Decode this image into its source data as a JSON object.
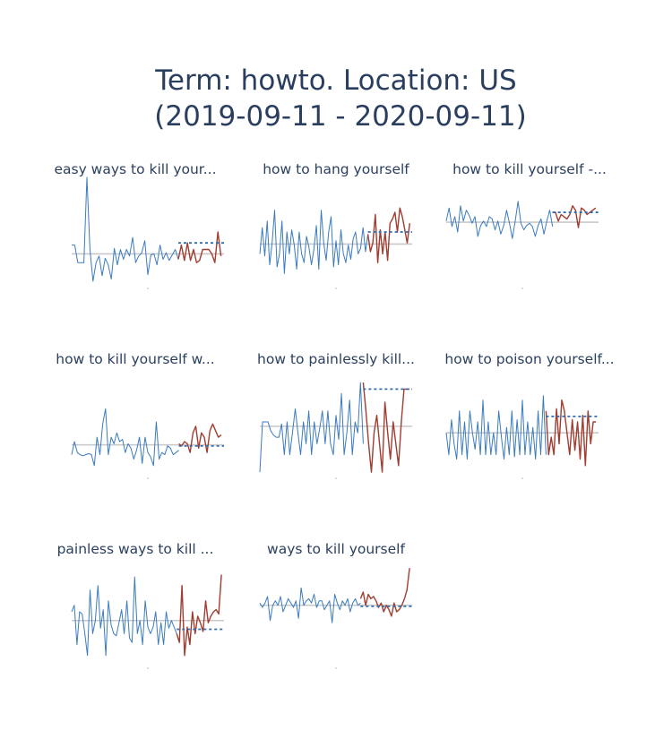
{
  "figure": {
    "title_line1": "Term: howto. Location: US",
    "title_line2": "(2019-09-11 - 2020-09-11)"
  },
  "colors": {
    "history_line": "#3b7bbf",
    "recent_line": "#a03d30",
    "baseline": "#c8c8c8",
    "projection_dotted": "#2e6eb5",
    "title_text": "#2a3f5f"
  },
  "chart_data": [
    {
      "type": "line",
      "title": "easy ways to kill your...",
      "history": [
        0.38,
        0.38,
        0.22,
        0.22,
        0.22,
        1.0,
        0.34,
        0.05,
        0.22,
        0.28,
        0.1,
        0.26,
        0.2,
        0.07,
        0.35,
        0.2,
        0.34,
        0.25,
        0.34,
        0.28,
        0.45,
        0.22,
        0.28,
        0.31,
        0.42,
        0.11,
        0.29,
        0.3,
        0.2,
        0.38,
        0.25,
        0.31,
        0.24,
        0.29,
        0.34,
        0.25
      ],
      "recent": [
        0.25,
        0.38,
        0.24,
        0.4,
        0.24,
        0.34,
        0.22,
        0.24,
        0.34,
        0.34,
        0.34,
        0.3,
        0.22,
        0.5,
        0.28
      ],
      "baseline": 0.3,
      "projection": 0.4
    },
    {
      "type": "line",
      "title": "how to hang yourself",
      "history": [
        0.3,
        0.54,
        0.28,
        0.6,
        0.2,
        0.4,
        0.7,
        0.18,
        0.3,
        0.6,
        0.12,
        0.5,
        0.3,
        0.52,
        0.38,
        0.16,
        0.5,
        0.3,
        0.22,
        0.46,
        0.36,
        0.2,
        0.34,
        0.56,
        0.16,
        0.7,
        0.4,
        0.24,
        0.5,
        0.64,
        0.18,
        0.42,
        0.2,
        0.52,
        0.3,
        0.22,
        0.38,
        0.25,
        0.44,
        0.5,
        0.3,
        0.35,
        0.54,
        0.32,
        0.48
      ],
      "recent": [
        0.48,
        0.32,
        0.4,
        0.66,
        0.22,
        0.52,
        0.3,
        0.5,
        0.24,
        0.58,
        0.62,
        0.68,
        0.5,
        0.72,
        0.64,
        0.52,
        0.4,
        0.58
      ],
      "baseline": 0.39,
      "projection": 0.5
    },
    {
      "type": "line",
      "title": "how to kill yourself -...",
      "history": [
        0.6,
        0.72,
        0.55,
        0.64,
        0.5,
        0.74,
        0.6,
        0.7,
        0.65,
        0.58,
        0.64,
        0.46,
        0.56,
        0.6,
        0.55,
        0.64,
        0.62,
        0.52,
        0.6,
        0.48,
        0.56,
        0.7,
        0.58,
        0.44,
        0.6,
        0.78,
        0.58,
        0.52,
        0.56,
        0.58,
        0.55,
        0.46,
        0.56,
        0.62,
        0.48,
        0.6,
        0.7,
        0.55
      ],
      "recent": [
        0.68,
        0.68,
        0.6,
        0.66,
        0.64,
        0.62,
        0.66,
        0.74,
        0.7,
        0.54,
        0.72,
        0.7,
        0.66,
        0.68,
        0.7,
        0.72
      ],
      "baseline": 0.59,
      "projection": 0.68
    },
    {
      "type": "line",
      "title": "how to kill yourself w...",
      "history": [
        0.2,
        0.32,
        0.22,
        0.2,
        0.19,
        0.2,
        0.21,
        0.2,
        0.1,
        0.36,
        0.2,
        0.48,
        0.62,
        0.2,
        0.36,
        0.3,
        0.4,
        0.32,
        0.34,
        0.22,
        0.3,
        0.26,
        0.16,
        0.24,
        0.36,
        0.12,
        0.36,
        0.22,
        0.18,
        0.1,
        0.5,
        0.16,
        0.22,
        0.2,
        0.28,
        0.26,
        0.2,
        0.22,
        0.24
      ],
      "recent": [
        0.3,
        0.28,
        0.32,
        0.3,
        0.22,
        0.4,
        0.46,
        0.26,
        0.4,
        0.36,
        0.22,
        0.42,
        0.48,
        0.42,
        0.36,
        0.38
      ],
      "baseline": 0.29,
      "projection": 0.28
    },
    {
      "type": "line",
      "title": "how to painlessly kill...",
      "history": [
        0.04,
        0.5,
        0.5,
        0.5,
        0.42,
        0.38,
        0.36,
        0.36,
        0.48,
        0.2,
        0.5,
        0.2,
        0.4,
        0.62,
        0.4,
        0.2,
        0.5,
        0.3,
        0.6,
        0.2,
        0.5,
        0.3,
        0.44,
        0.6,
        0.3,
        0.6,
        0.3,
        0.2,
        0.56,
        0.34,
        0.76,
        0.2,
        0.4,
        0.7,
        0.2,
        0.5,
        0.4,
        0.86,
        0.3
      ],
      "recent": [
        0.86,
        0.6,
        0.3,
        0.04,
        0.4,
        0.56,
        0.3,
        0.04,
        0.68,
        0.4,
        0.16,
        0.5,
        0.3,
        0.1,
        0.5,
        0.8,
        0.8,
        0.8
      ],
      "baseline": 0.46,
      "projection": 0.8
    },
    {
      "type": "line",
      "title": "how to poison yourself...",
      "history": [
        0.4,
        0.2,
        0.52,
        0.3,
        0.16,
        0.6,
        0.2,
        0.5,
        0.16,
        0.6,
        0.4,
        0.25,
        0.5,
        0.2,
        0.7,
        0.2,
        0.5,
        0.2,
        0.4,
        0.2,
        0.6,
        0.36,
        0.16,
        0.45,
        0.2,
        0.6,
        0.18,
        0.52,
        0.2,
        0.7,
        0.2,
        0.5,
        0.2,
        0.45,
        0.16,
        0.6,
        0.2,
        0.74,
        0.2
      ],
      "recent": [
        0.6,
        0.2,
        0.36,
        0.2,
        0.62,
        0.3,
        0.7,
        0.6,
        0.4,
        0.2,
        0.52,
        0.24,
        0.5,
        0.16,
        0.56,
        0.1,
        0.6,
        0.3,
        0.5,
        0.5
      ],
      "baseline": 0.4,
      "projection": 0.55
    },
    {
      "type": "line",
      "title": "painless ways to kill ...",
      "history": [
        0.5,
        0.56,
        0.2,
        0.5,
        0.48,
        0.3,
        0.1,
        0.7,
        0.3,
        0.42,
        0.74,
        0.35,
        0.52,
        0.1,
        0.6,
        0.38,
        0.3,
        0.28,
        0.4,
        0.52,
        0.3,
        0.6,
        0.26,
        0.22,
        0.82,
        0.3,
        0.42,
        0.2,
        0.6,
        0.36,
        0.3,
        0.36,
        0.5,
        0.2,
        0.4,
        0.2,
        0.5,
        0.35,
        0.42,
        0.36,
        0.3
      ],
      "recent": [
        0.3,
        0.22,
        0.74,
        0.1,
        0.36,
        0.2,
        0.5,
        0.3,
        0.46,
        0.4,
        0.32,
        0.6,
        0.4,
        0.46,
        0.5,
        0.52,
        0.48,
        0.84
      ],
      "baseline": 0.42,
      "projection": 0.34
    },
    {
      "type": "line",
      "title": "ways to kill yourself",
      "history": [
        0.58,
        0.54,
        0.58,
        0.64,
        0.42,
        0.56,
        0.6,
        0.56,
        0.64,
        0.5,
        0.56,
        0.62,
        0.58,
        0.54,
        0.6,
        0.44,
        0.72,
        0.56,
        0.6,
        0.62,
        0.58,
        0.66,
        0.54,
        0.6,
        0.6,
        0.52,
        0.56,
        0.6,
        0.4,
        0.66,
        0.58,
        0.52,
        0.6,
        0.56,
        0.62,
        0.5,
        0.58,
        0.62,
        0.56,
        0.58
      ],
      "recent": [
        0.62,
        0.68,
        0.56,
        0.66,
        0.62,
        0.64,
        0.6,
        0.54,
        0.58,
        0.5,
        0.56,
        0.52,
        0.46,
        0.58,
        0.5,
        0.52,
        0.56,
        0.62,
        0.7,
        0.9
      ],
      "baseline": 0.56,
      "projection": 0.55
    }
  ]
}
